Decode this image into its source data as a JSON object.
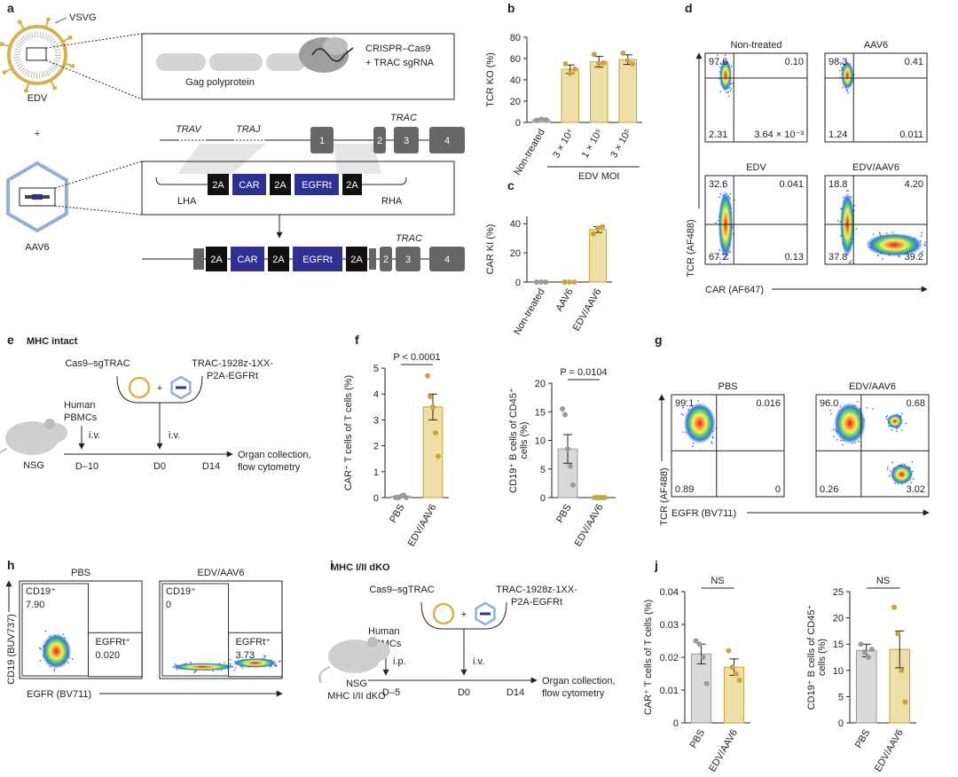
{
  "figure_labels": [
    "a",
    "b",
    "c",
    "d",
    "e",
    "f",
    "g",
    "h",
    "i",
    "j"
  ],
  "panel_a": {
    "vsvg": "VSVG",
    "edv": "EDV",
    "plus": "+",
    "aav6": "AAV6",
    "cas9": [
      "CRISPR–Cas9",
      "+ TRAC sgRNA"
    ],
    "gag": "Gag polyprotein",
    "trav": "TRAV",
    "traj": "TRAJ",
    "trac": "TRAC",
    "exons": [
      "1",
      "2",
      "3",
      "4"
    ],
    "donor": [
      "2A",
      "CAR",
      "2A",
      "EGFRt",
      "2A"
    ],
    "lha": "LHA",
    "rha": "RHA",
    "edited_row": [
      "2A",
      "CAR",
      "2A",
      "EGFRt",
      "2A"
    ],
    "edited_exons": [
      "2",
      "3",
      "4"
    ],
    "edited_trac": "TRAC"
  },
  "panel_e": {
    "title": "MHC intact",
    "cas9": "Cas9–sgTRAC",
    "construct": [
      "TRAC-1928z-1XX-",
      "P2A-EGFRt"
    ],
    "plus": "+",
    "cells": [
      "Human",
      "PBMCs"
    ],
    "route1": "i.v.",
    "route2": "i.v.",
    "mouse": [
      "NSG"
    ],
    "days": [
      "D–10",
      "D0",
      "D14"
    ],
    "readout": [
      "Organ collection,",
      "flow cytometry"
    ]
  },
  "panel_i": {
    "title": "MHC I/II dKO",
    "cas9": "Cas9–sgTRAC",
    "construct": [
      "TRAC-1928z-1XX-",
      "P2A-EGFRt"
    ],
    "plus": "+",
    "cells": [
      "Human",
      "PBMCs"
    ],
    "route1": "i.p.",
    "route2": "i.v.",
    "mouse": [
      "NSG",
      "MHC I/II dKO"
    ],
    "days": [
      "D–5",
      "D0",
      "D14"
    ],
    "readout": [
      "Organ collection,",
      "flow cytometry"
    ]
  },
  "chart_data": [
    {
      "type": "bar",
      "ylabel": [
        "TCR KO (%)"
      ],
      "categories": [
        "Non-treated",
        "3 × 10⁴",
        "1 × 10⁵",
        "3 × 10⁵"
      ],
      "group_label": "EDV MOI",
      "values": [
        2.5,
        50,
        57,
        59
      ],
      "errors": [
        0.5,
        4,
        5,
        4.5
      ],
      "points": [
        [
          2,
          3,
          2.5
        ],
        [
          55,
          46,
          50
        ],
        [
          64,
          55,
          56
        ],
        [
          65,
          58,
          55
        ]
      ],
      "colors": [
        "#d9d9d9",
        "#eddfa5",
        "#eddfa5",
        "#eddfa5"
      ],
      "edge_colors": [
        "#9a9a9a",
        "#c9a43a",
        "#c9a43a",
        "#c9a43a"
      ],
      "ylim": [
        0,
        80
      ],
      "yticks": [
        0,
        20,
        40,
        60,
        80
      ]
    },
    {
      "type": "bar",
      "ylabel": [
        "CAR KI (%)"
      ],
      "categories": [
        "Non-treated",
        "AAV6",
        "EDV/AAV6"
      ],
      "values": [
        0,
        0,
        36
      ],
      "errors": [
        0,
        0,
        2
      ],
      "points": [
        [
          0,
          0,
          0
        ],
        [
          0,
          0,
          0
        ],
        [
          33,
          37,
          38
        ]
      ],
      "colors": [
        "#d9d9d9",
        "#eddfa5",
        "#eddfa5"
      ],
      "edge_colors": [
        "#9a9a9a",
        "#c9a43a",
        "#c9a43a"
      ],
      "ylim": [
        0,
        45
      ],
      "yticks": [
        0,
        20,
        40
      ]
    },
    {
      "type": "bar",
      "ylabel": [
        "CAR⁺ T cells of T cells (%)"
      ],
      "categories": [
        "PBS",
        "EDV/AAV6"
      ],
      "annotation": "P < 0.0001",
      "values": [
        0.05,
        3.5
      ],
      "errors": [
        0.03,
        0.5
      ],
      "points": [
        [
          0,
          0,
          0.05,
          0.1,
          0
        ],
        [
          4.7,
          3.9,
          3.5,
          2.5,
          1.6
        ]
      ],
      "colors": [
        "#d9d9d9",
        "#eddfa5"
      ],
      "edge_colors": [
        "#9a9a9a",
        "#c9a43a"
      ],
      "ylim": [
        0,
        5
      ],
      "yticks": [
        0,
        1,
        2,
        3,
        4,
        5
      ]
    },
    {
      "type": "bar",
      "ylabel": [
        "CD19⁺ B cells of CD45⁺",
        "cells (%)"
      ],
      "categories": [
        "PBS",
        "EDV/AAV6"
      ],
      "annotation": "P = 0.0104",
      "values": [
        8.5,
        0
      ],
      "errors": [
        2.5,
        0
      ],
      "points": [
        [
          15.5,
          14.5,
          8.5,
          5.5,
          2.2
        ],
        [
          0,
          0,
          0,
          0,
          0
        ]
      ],
      "colors": [
        "#d9d9d9",
        "#eddfa5"
      ],
      "edge_colors": [
        "#9a9a9a",
        "#c9a43a"
      ],
      "ylim": [
        0,
        20
      ],
      "yticks": [
        0,
        5,
        10,
        15,
        20
      ]
    },
    {
      "type": "bar",
      "ylabel": [
        "CAR⁺ T cells of T cells (%)"
      ],
      "categories": [
        "PBS",
        "EDV/AAV6"
      ],
      "annotation": "NS",
      "values": [
        0.021,
        0.017
      ],
      "errors": [
        0.003,
        0.0025
      ],
      "points": [
        [
          0.025,
          0.024,
          0.02,
          0.012
        ],
        [
          0.022,
          0.017,
          0.015,
          0.013
        ]
      ],
      "colors": [
        "#d9d9d9",
        "#eddfa5"
      ],
      "edge_colors": [
        "#9a9a9a",
        "#c9a43a"
      ],
      "ylim": [
        0,
        0.04
      ],
      "yticks": [
        0,
        0.01,
        0.02,
        0.03,
        0.04
      ]
    },
    {
      "type": "bar",
      "ylabel": [
        "CD19⁺ B cells of CD45⁺",
        "cells (%)"
      ],
      "categories": [
        "PBS",
        "EDV/AAV6"
      ],
      "annotation": "NS",
      "values": [
        13.8,
        14
      ],
      "errors": [
        1.2,
        3.5
      ],
      "points": [
        [
          15,
          13.5,
          12.5,
          14
        ],
        [
          22,
          17,
          10,
          4
        ]
      ],
      "colors": [
        "#d9d9d9",
        "#eddfa5"
      ],
      "edge_colors": [
        "#9a9a9a",
        "#c9a43a"
      ],
      "ylim": [
        0,
        25
      ],
      "yticks": [
        0,
        5,
        10,
        15,
        20,
        25
      ]
    }
  ],
  "flow_d": {
    "x_label": "CAR (AF647)",
    "y_label": "TCR (AF488)",
    "plots": [
      {
        "title": "Non-treated",
        "quadrants": [
          "97.6",
          "0.10",
          "2.31",
          "3.64 × 10⁻³"
        ]
      },
      {
        "title": "AAV6",
        "quadrants": [
          "98.3",
          "0.41",
          "1.24",
          "0.011"
        ]
      },
      {
        "title": "EDV",
        "quadrants": [
          "32.6",
          "0.041",
          "67.2",
          "0.13"
        ]
      },
      {
        "title": "EDV/AAV6",
        "quadrants": [
          "18.8",
          "4.20",
          "37.8",
          "39.2"
        ]
      }
    ]
  },
  "flow_g": {
    "x_label": "EGFR (BV711)",
    "y_label": "TCR (AF488)",
    "plots": [
      {
        "title": "PBS",
        "quadrants": [
          "99.1",
          "0.016",
          "0.89",
          "0"
        ]
      },
      {
        "title": "EDV/AAV6",
        "quadrants": [
          "96.0",
          "0.68",
          "0.26",
          "3.02"
        ]
      }
    ]
  },
  "flow_h": {
    "x_label": "EGFR (BV711)",
    "y_label": "CD19 (BUV737)",
    "plots": [
      {
        "title": "PBS",
        "gates": [
          {
            "name": "CD19⁺",
            "value": "7.90"
          },
          {
            "name": "EGFRt⁺",
            "value": "0.020"
          }
        ]
      },
      {
        "title": "EDV/AAV6",
        "gates": [
          {
            "name": "CD19⁺",
            "value": "0"
          },
          {
            "name": "EGFRt⁺",
            "value": "3.73"
          }
        ]
      }
    ]
  }
}
